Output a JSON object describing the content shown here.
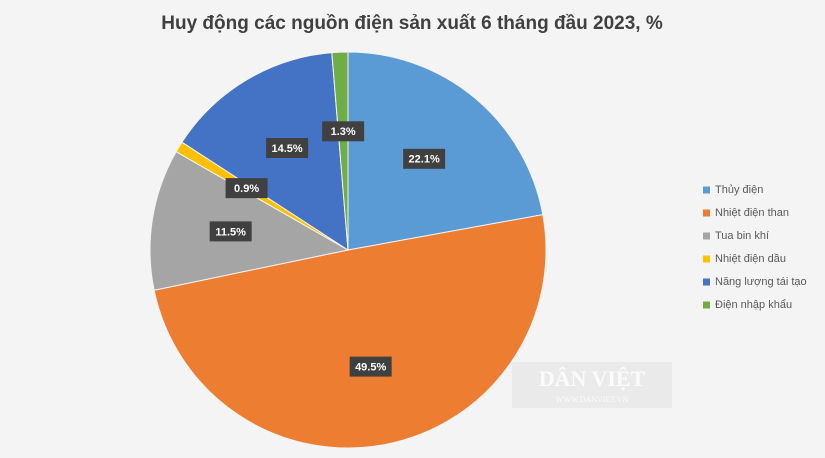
{
  "chart_data": {
    "type": "pie",
    "title": "Huy động các nguồn điện sản xuất 6 tháng đầu 2023, %",
    "categories": [
      "Thủy điện",
      "Nhiệt điện than",
      "Tua bin khí",
      "Nhiệt điện dầu",
      "Năng lượng tái tạo",
      "Điện nhập khẩu"
    ],
    "values": [
      22.1,
      49.5,
      11.5,
      0.9,
      14.5,
      1.3
    ],
    "value_labels": [
      "22.1%",
      "49.5%",
      "11.5%",
      "0.9%",
      "14.5%",
      "1.3%"
    ],
    "colors": [
      "#5b9bd5",
      "#ed7d31",
      "#a5a5a5",
      "#ffc000",
      "#4472c4",
      "#70ad47"
    ],
    "legend": "right",
    "watermark": [
      "DÂN VIỆT",
      "WWW.DANVIET.VN"
    ]
  }
}
